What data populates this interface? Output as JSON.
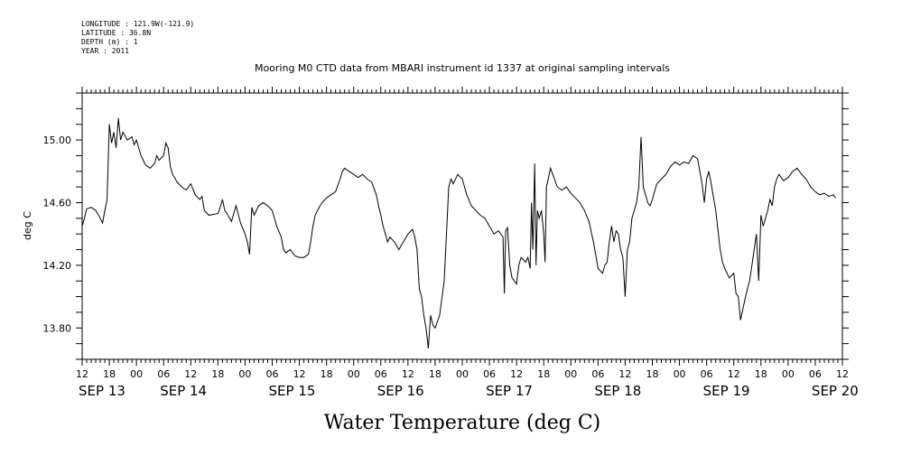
{
  "header": {
    "longitude": "LONGITUDE : 121.9W(-121.9)",
    "latitude": "LATITUDE : 36.8N",
    "depth": "DEPTH (m) : 1",
    "year": "YEAR : 2011"
  },
  "chart_data": {
    "type": "line",
    "title": "Mooring M0 CTD data from MBARI instrument id 1337 at original sampling intervals",
    "xlabel": "Water Temperature (deg C)",
    "ylabel": "deg C",
    "ylim": [
      13.6,
      15.3
    ],
    "yticks": [
      13.8,
      14.2,
      14.6,
      15.0
    ],
    "ytick_labels": [
      "13.80",
      "14.20",
      "14.60",
      "15.00"
    ],
    "xlim_hours": [
      0,
      168
    ],
    "x_units": "hours since SEP 13 12:00, 2011",
    "hour_ticks": [
      {
        "h": 0,
        "label": "12"
      },
      {
        "h": 6,
        "label": "18"
      },
      {
        "h": 12,
        "label": "00"
      },
      {
        "h": 18,
        "label": "06"
      },
      {
        "h": 24,
        "label": "12"
      },
      {
        "h": 30,
        "label": "18"
      },
      {
        "h": 36,
        "label": "00"
      },
      {
        "h": 42,
        "label": "06"
      },
      {
        "h": 48,
        "label": "12"
      },
      {
        "h": 54,
        "label": "18"
      },
      {
        "h": 60,
        "label": "00"
      },
      {
        "h": 66,
        "label": "06"
      },
      {
        "h": 72,
        "label": "12"
      },
      {
        "h": 78,
        "label": "18"
      },
      {
        "h": 84,
        "label": "00"
      },
      {
        "h": 90,
        "label": "06"
      },
      {
        "h": 96,
        "label": "12"
      },
      {
        "h": 102,
        "label": "18"
      },
      {
        "h": 108,
        "label": "00"
      },
      {
        "h": 114,
        "label": "06"
      },
      {
        "h": 120,
        "label": "12"
      },
      {
        "h": 126,
        "label": "18"
      },
      {
        "h": 132,
        "label": "00"
      },
      {
        "h": 138,
        "label": "06"
      },
      {
        "h": 144,
        "label": "12"
      },
      {
        "h": 150,
        "label": "18"
      },
      {
        "h": 156,
        "label": "00"
      },
      {
        "h": 162,
        "label": "06"
      },
      {
        "h": 168,
        "label": "12"
      }
    ],
    "day_labels": [
      {
        "h": 0,
        "label": "SEP 13"
      },
      {
        "h": 18,
        "label": "SEP 14"
      },
      {
        "h": 42,
        "label": "SEP 15"
      },
      {
        "h": 66,
        "label": "SEP 16"
      },
      {
        "h": 90,
        "label": "SEP 17"
      },
      {
        "h": 114,
        "label": "SEP 18"
      },
      {
        "h": 138,
        "label": "SEP 19"
      },
      {
        "h": 162,
        "label": "SEP 20"
      }
    ],
    "series": [
      {
        "color": "#000000",
        "points": [
          [
            0,
            14.45
          ],
          [
            0.5,
            14.5
          ],
          [
            1,
            14.56
          ],
          [
            2,
            14.57
          ],
          [
            3,
            14.55
          ],
          [
            4,
            14.5
          ],
          [
            4.5,
            14.47
          ],
          [
            5,
            14.55
          ],
          [
            5.5,
            14.62
          ],
          [
            6,
            15.1
          ],
          [
            6.5,
            14.98
          ],
          [
            7,
            15.05
          ],
          [
            7.5,
            14.95
          ],
          [
            8,
            15.14
          ],
          [
            8.5,
            15.0
          ],
          [
            9,
            15.05
          ],
          [
            10,
            15.0
          ],
          [
            11,
            15.02
          ],
          [
            11.5,
            14.97
          ],
          [
            12,
            15.0
          ],
          [
            13,
            14.9
          ],
          [
            14,
            14.84
          ],
          [
            15,
            14.82
          ],
          [
            16,
            14.85
          ],
          [
            16.5,
            14.9
          ],
          [
            17,
            14.87
          ],
          [
            18,
            14.9
          ],
          [
            18.5,
            14.98
          ],
          [
            19,
            14.95
          ],
          [
            19.5,
            14.83
          ],
          [
            20,
            14.78
          ],
          [
            21,
            14.73
          ],
          [
            22,
            14.7
          ],
          [
            23,
            14.68
          ],
          [
            24,
            14.72
          ],
          [
            25,
            14.65
          ],
          [
            26,
            14.62
          ],
          [
            26.5,
            14.64
          ],
          [
            27,
            14.55
          ],
          [
            28,
            14.52
          ],
          [
            30,
            14.53
          ],
          [
            30.5,
            14.57
          ],
          [
            31,
            14.62
          ],
          [
            31.5,
            14.55
          ],
          [
            32,
            14.53
          ],
          [
            33,
            14.48
          ],
          [
            34,
            14.58
          ],
          [
            35,
            14.47
          ],
          [
            36,
            14.4
          ],
          [
            36.5,
            14.35
          ],
          [
            37,
            14.27
          ],
          [
            37.5,
            14.57
          ],
          [
            38,
            14.52
          ],
          [
            38.5,
            14.55
          ],
          [
            39,
            14.58
          ],
          [
            40,
            14.6
          ],
          [
            41,
            14.58
          ],
          [
            42,
            14.55
          ],
          [
            43,
            14.45
          ],
          [
            44,
            14.38
          ],
          [
            44.5,
            14.3
          ],
          [
            45,
            14.28
          ],
          [
            46,
            14.3
          ],
          [
            47,
            14.26
          ],
          [
            48,
            14.25
          ],
          [
            49,
            14.25
          ],
          [
            50,
            14.27
          ],
          [
            50.5,
            14.35
          ],
          [
            51,
            14.45
          ],
          [
            51.5,
            14.52
          ],
          [
            52,
            14.55
          ],
          [
            53,
            14.6
          ],
          [
            54,
            14.63
          ],
          [
            55,
            14.65
          ],
          [
            56,
            14.67
          ],
          [
            57,
            14.75
          ],
          [
            57.5,
            14.8
          ],
          [
            58,
            14.82
          ],
          [
            59,
            14.8
          ],
          [
            60,
            14.78
          ],
          [
            61,
            14.76
          ],
          [
            62,
            14.78
          ],
          [
            63,
            14.75
          ],
          [
            64,
            14.73
          ],
          [
            65,
            14.65
          ],
          [
            65.5,
            14.58
          ],
          [
            66,
            14.52
          ],
          [
            66.5,
            14.45
          ],
          [
            67,
            14.4
          ],
          [
            67.5,
            14.35
          ],
          [
            68,
            14.38
          ],
          [
            69,
            14.35
          ],
          [
            70,
            14.3
          ],
          [
            71,
            14.35
          ],
          [
            72,
            14.4
          ],
          [
            73,
            14.43
          ],
          [
            73.5,
            14.38
          ],
          [
            74,
            14.3
          ],
          [
            74.5,
            14.05
          ],
          [
            75,
            14.0
          ],
          [
            75.5,
            13.88
          ],
          [
            76,
            13.8
          ],
          [
            76.5,
            13.67
          ],
          [
            77,
            13.88
          ],
          [
            77.5,
            13.82
          ],
          [
            78,
            13.8
          ],
          [
            79,
            13.88
          ],
          [
            80,
            14.1
          ],
          [
            80.5,
            14.4
          ],
          [
            81,
            14.7
          ],
          [
            81.5,
            14.75
          ],
          [
            82,
            14.72
          ],
          [
            83,
            14.78
          ],
          [
            84,
            14.75
          ],
          [
            85,
            14.65
          ],
          [
            86,
            14.58
          ],
          [
            87,
            14.55
          ],
          [
            88,
            14.52
          ],
          [
            89,
            14.5
          ],
          [
            90,
            14.45
          ],
          [
            91,
            14.4
          ],
          [
            92,
            14.42
          ],
          [
            93,
            14.38
          ],
          [
            93.3,
            14.02
          ],
          [
            93.6,
            14.42
          ],
          [
            94,
            14.44
          ],
          [
            94.5,
            14.2
          ],
          [
            95,
            14.12
          ],
          [
            96,
            14.08
          ],
          [
            96.5,
            14.2
          ],
          [
            97,
            14.25
          ],
          [
            98,
            14.22
          ],
          [
            98.5,
            14.25
          ],
          [
            99,
            14.18
          ],
          [
            99.3,
            14.6
          ],
          [
            99.6,
            14.3
          ],
          [
            100,
            14.85
          ],
          [
            100.3,
            14.2
          ],
          [
            100.6,
            14.55
          ],
          [
            101,
            14.5
          ],
          [
            101.5,
            14.55
          ],
          [
            102,
            14.4
          ],
          [
            102.3,
            14.22
          ],
          [
            102.6,
            14.7
          ],
          [
            103,
            14.75
          ],
          [
            103.5,
            14.82
          ],
          [
            104,
            14.78
          ],
          [
            105,
            14.7
          ],
          [
            106,
            14.68
          ],
          [
            107,
            14.7
          ],
          [
            108,
            14.66
          ],
          [
            109,
            14.63
          ],
          [
            110,
            14.6
          ],
          [
            111,
            14.55
          ],
          [
            112,
            14.48
          ],
          [
            113,
            14.35
          ],
          [
            114,
            14.18
          ],
          [
            115,
            14.15
          ],
          [
            115.5,
            14.2
          ],
          [
            116,
            14.22
          ],
          [
            116.5,
            14.35
          ],
          [
            117,
            14.45
          ],
          [
            117.5,
            14.35
          ],
          [
            118,
            14.42
          ],
          [
            118.5,
            14.4
          ],
          [
            119,
            14.3
          ],
          [
            119.5,
            14.25
          ],
          [
            120,
            14.0
          ],
          [
            120.5,
            14.3
          ],
          [
            121,
            14.35
          ],
          [
            121.5,
            14.5
          ],
          [
            122,
            14.55
          ],
          [
            122.5,
            14.6
          ],
          [
            123,
            14.7
          ],
          [
            123.5,
            15.02
          ],
          [
            124,
            14.7
          ],
          [
            124.5,
            14.65
          ],
          [
            125,
            14.6
          ],
          [
            125.5,
            14.58
          ],
          [
            126,
            14.62
          ],
          [
            127,
            14.72
          ],
          [
            128,
            14.75
          ],
          [
            129,
            14.78
          ],
          [
            130,
            14.83
          ],
          [
            131,
            14.86
          ],
          [
            132,
            14.84
          ],
          [
            133,
            14.86
          ],
          [
            134,
            14.85
          ],
          [
            135,
            14.9
          ],
          [
            136,
            14.88
          ],
          [
            137,
            14.72
          ],
          [
            137.5,
            14.6
          ],
          [
            138,
            14.75
          ],
          [
            138.5,
            14.8
          ],
          [
            139,
            14.72
          ],
          [
            140,
            14.55
          ],
          [
            141,
            14.3
          ],
          [
            141.5,
            14.22
          ],
          [
            142,
            14.18
          ],
          [
            143,
            14.12
          ],
          [
            144,
            14.15
          ],
          [
            144.5,
            14.02
          ],
          [
            145,
            14.0
          ],
          [
            145.5,
            13.85
          ],
          [
            146,
            13.92
          ],
          [
            147,
            14.05
          ],
          [
            147.5,
            14.1
          ],
          [
            148,
            14.2
          ],
          [
            148.5,
            14.3
          ],
          [
            149,
            14.4
          ],
          [
            149.5,
            14.1
          ],
          [
            150,
            14.52
          ],
          [
            150.5,
            14.45
          ],
          [
            151,
            14.5
          ],
          [
            151.5,
            14.55
          ],
          [
            152,
            14.62
          ],
          [
            152.5,
            14.58
          ],
          [
            153,
            14.7
          ],
          [
            153.5,
            14.75
          ],
          [
            154,
            14.78
          ],
          [
            155,
            14.74
          ],
          [
            156,
            14.76
          ],
          [
            157,
            14.8
          ],
          [
            158,
            14.82
          ],
          [
            159,
            14.78
          ],
          [
            160,
            14.75
          ],
          [
            161,
            14.7
          ],
          [
            162,
            14.67
          ],
          [
            163,
            14.65
          ],
          [
            164,
            14.66
          ],
          [
            165,
            14.64
          ],
          [
            166,
            14.65
          ],
          [
            166.5,
            14.63
          ]
        ]
      }
    ]
  }
}
